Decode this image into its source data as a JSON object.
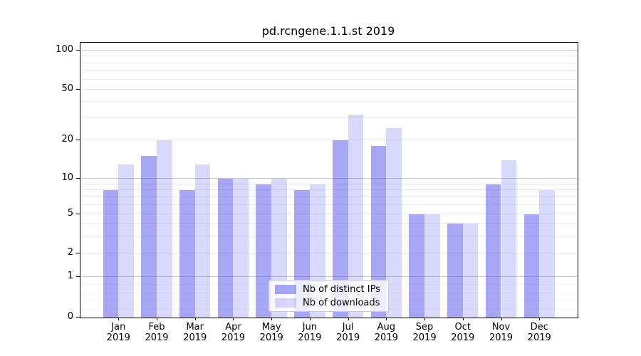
{
  "title": "pd.rcngene.1.1.st 2019",
  "chart_data": {
    "type": "bar",
    "title": "pd.rcngene.1.1.st 2019",
    "yscale": "symlog",
    "grid": true,
    "legend_position": "lower center",
    "ylim": [
      0,
      114
    ],
    "yticks": [
      100,
      50,
      20,
      10,
      5,
      2,
      1,
      0
    ],
    "categories": [
      "Jan",
      "Feb",
      "Mar",
      "Apr",
      "May",
      "Jun",
      "Jul",
      "Aug",
      "Sep",
      "Oct",
      "Nov",
      "Dec"
    ],
    "year": "2019",
    "series": [
      {
        "name": "Nb of distinct IPs",
        "color": "rgba(80,80,235,0.5)",
        "values": [
          8,
          15,
          8,
          10,
          9,
          8,
          20,
          18,
          5,
          4,
          9,
          5
        ]
      },
      {
        "name": "Nb of downloads",
        "color": "rgba(80,80,235,0.22)",
        "values": [
          13,
          20,
          13,
          10,
          10,
          9,
          32,
          25,
          5,
          4,
          14,
          8
        ]
      }
    ]
  }
}
